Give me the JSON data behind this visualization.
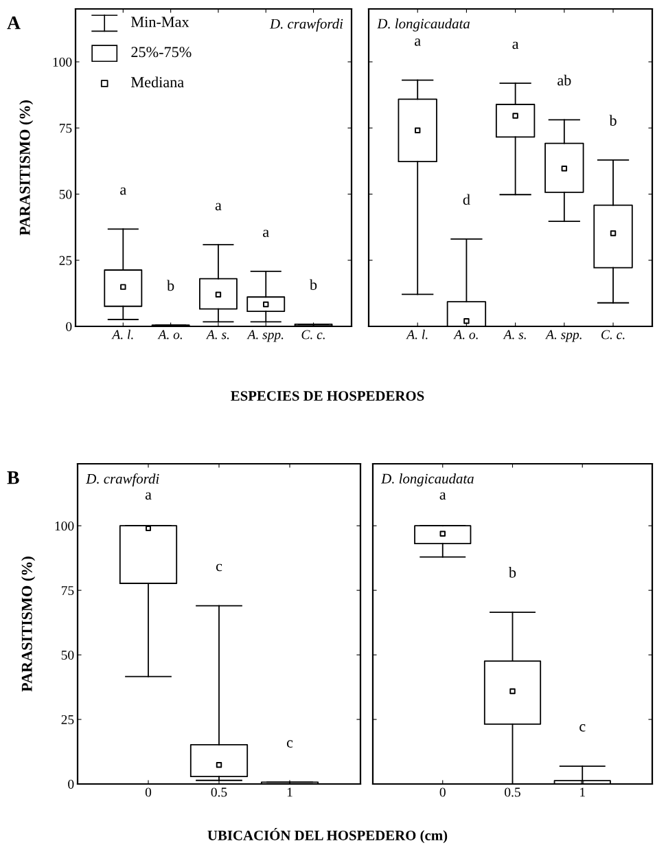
{
  "chart_data": [
    {
      "type": "box",
      "title": "A",
      "subtitle": "D. crawfordi",
      "xlabel": "ESPECIES DE HOSPEDEROS",
      "ylabel": "PARASITISMO (%)",
      "categories": [
        "A. l.",
        "A. o.",
        "A. s.",
        "A. spp.",
        "C. c."
      ],
      "ylim": [
        0,
        120
      ],
      "yticks": [
        0,
        25,
        50,
        75,
        100
      ],
      "marker": "square",
      "grid": false,
      "boxes": [
        {
          "low": 2.6,
          "q1": 7.6,
          "median": 14.9,
          "q3": 21.3,
          "high": 36.8
        },
        {
          "low": 0,
          "q1": 0,
          "median": 0.3,
          "q3": 0.5,
          "high": 0.5
        },
        {
          "low": 1.7,
          "q1": 6.6,
          "median": 12,
          "q3": 18,
          "high": 30.9
        },
        {
          "low": 1.7,
          "q1": 5.7,
          "median": 8.3,
          "q3": 11.1,
          "high": 20.8
        },
        {
          "low": 0,
          "q1": 0.2,
          "median": 0.5,
          "q3": 0.8,
          "high": 0.8
        }
      ],
      "annotations": [
        "Min-Max",
        "25%-75%",
        "Mediana",
        "a",
        "b",
        "a",
        "a",
        "b"
      ]
    },
    {
      "type": "box",
      "subtitle": "D. longicaudata",
      "categories": [
        "A. l.",
        "A. o.",
        "A. s.",
        "A. spp.",
        "C. c."
      ],
      "ylim": [
        0,
        120
      ],
      "yticks": [
        0,
        25,
        50,
        75,
        100
      ],
      "tick_labels": "x",
      "marker": "square",
      "grid": false,
      "boxes": [
        {
          "low": 12.1,
          "q1": 62.3,
          "median": 74.1,
          "q3": 85.9,
          "high": 93.1
        },
        {
          "low": 0,
          "q1": 0,
          "median": 2,
          "q3": 9.3,
          "high": 33
        },
        {
          "low": 49.8,
          "q1": 71.6,
          "median": 79.6,
          "q3": 83.9,
          "high": 91.9
        },
        {
          "low": 39.7,
          "q1": 50.7,
          "median": 59.7,
          "q3": 69.2,
          "high": 78.1
        },
        {
          "low": 8.9,
          "q1": 22.2,
          "median": 35.2,
          "q3": 45.8,
          "high": 62.9
        }
      ],
      "annotations": [
        "a",
        "d",
        "a",
        "ab",
        "b"
      ]
    },
    {
      "type": "box",
      "title": "B",
      "subtitle": "D. crawfordi",
      "xlabel": "UBICACIÓN DEL HOSPEDERO (cm)",
      "ylabel": "PARASITISMO (%)",
      "x": [
        0,
        0.5,
        1
      ],
      "xlim": [
        -0.5,
        1.5
      ],
      "xticks": [
        0,
        0.5,
        1
      ],
      "ylim": [
        0,
        124
      ],
      "yticks": [
        0,
        25,
        50,
        75,
        100
      ],
      "marker": "square",
      "grid": false,
      "boxes": [
        {
          "low": 41.6,
          "q1": 77.7,
          "median": 99,
          "q3": 100,
          "high": 100
        },
        {
          "low": 1.4,
          "q1": 2.9,
          "median": 7.4,
          "q3": 15.2,
          "high": 69
        },
        {
          "low": 0,
          "q1": 0,
          "median": 0.3,
          "q3": 0.7,
          "high": 0.7
        }
      ],
      "annotations": [
        "a",
        "c",
        "c"
      ]
    },
    {
      "type": "box",
      "subtitle": "D. longicaudata",
      "x": [
        0,
        0.5,
        1
      ],
      "xlim": [
        -0.5,
        1.5
      ],
      "xticks": [
        0,
        0.5,
        1
      ],
      "ylim": [
        0,
        124
      ],
      "yticks": [
        0,
        25,
        50,
        75,
        100
      ],
      "tick_labels": "x",
      "marker": "square",
      "grid": false,
      "boxes": [
        {
          "low": 87.9,
          "q1": 93.1,
          "median": 96.9,
          "q3": 100,
          "high": 100
        },
        {
          "low": 0,
          "q1": 23.2,
          "median": 35.9,
          "q3": 47.6,
          "high": 66.5
        },
        {
          "low": 0,
          "q1": 0,
          "median": 0.7,
          "q3": 1.3,
          "high": 6.9
        }
      ],
      "annotations": [
        "a",
        "b",
        "c"
      ]
    }
  ]
}
